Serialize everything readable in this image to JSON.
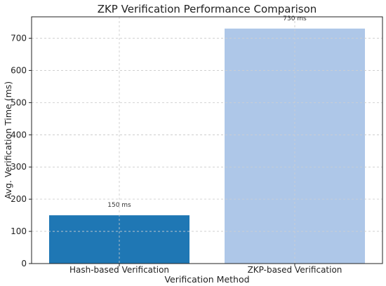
{
  "chart_data": {
    "type": "bar",
    "title": "ZKP Verification Performance Comparison",
    "xlabel": "Verification Method",
    "ylabel": "Avg. Verification Time (ms)",
    "categories": [
      "Hash-based Verification",
      "ZKP-based Verification"
    ],
    "values": [
      150,
      730
    ],
    "data_labels": [
      "150 ms",
      "730 ms"
    ],
    "bar_colors": [
      "#1f77b4",
      "#aec7e8"
    ],
    "ylim": [
      0,
      766.5
    ],
    "yticks": [
      0,
      100,
      200,
      300,
      400,
      500,
      600,
      700
    ],
    "grid": true
  }
}
